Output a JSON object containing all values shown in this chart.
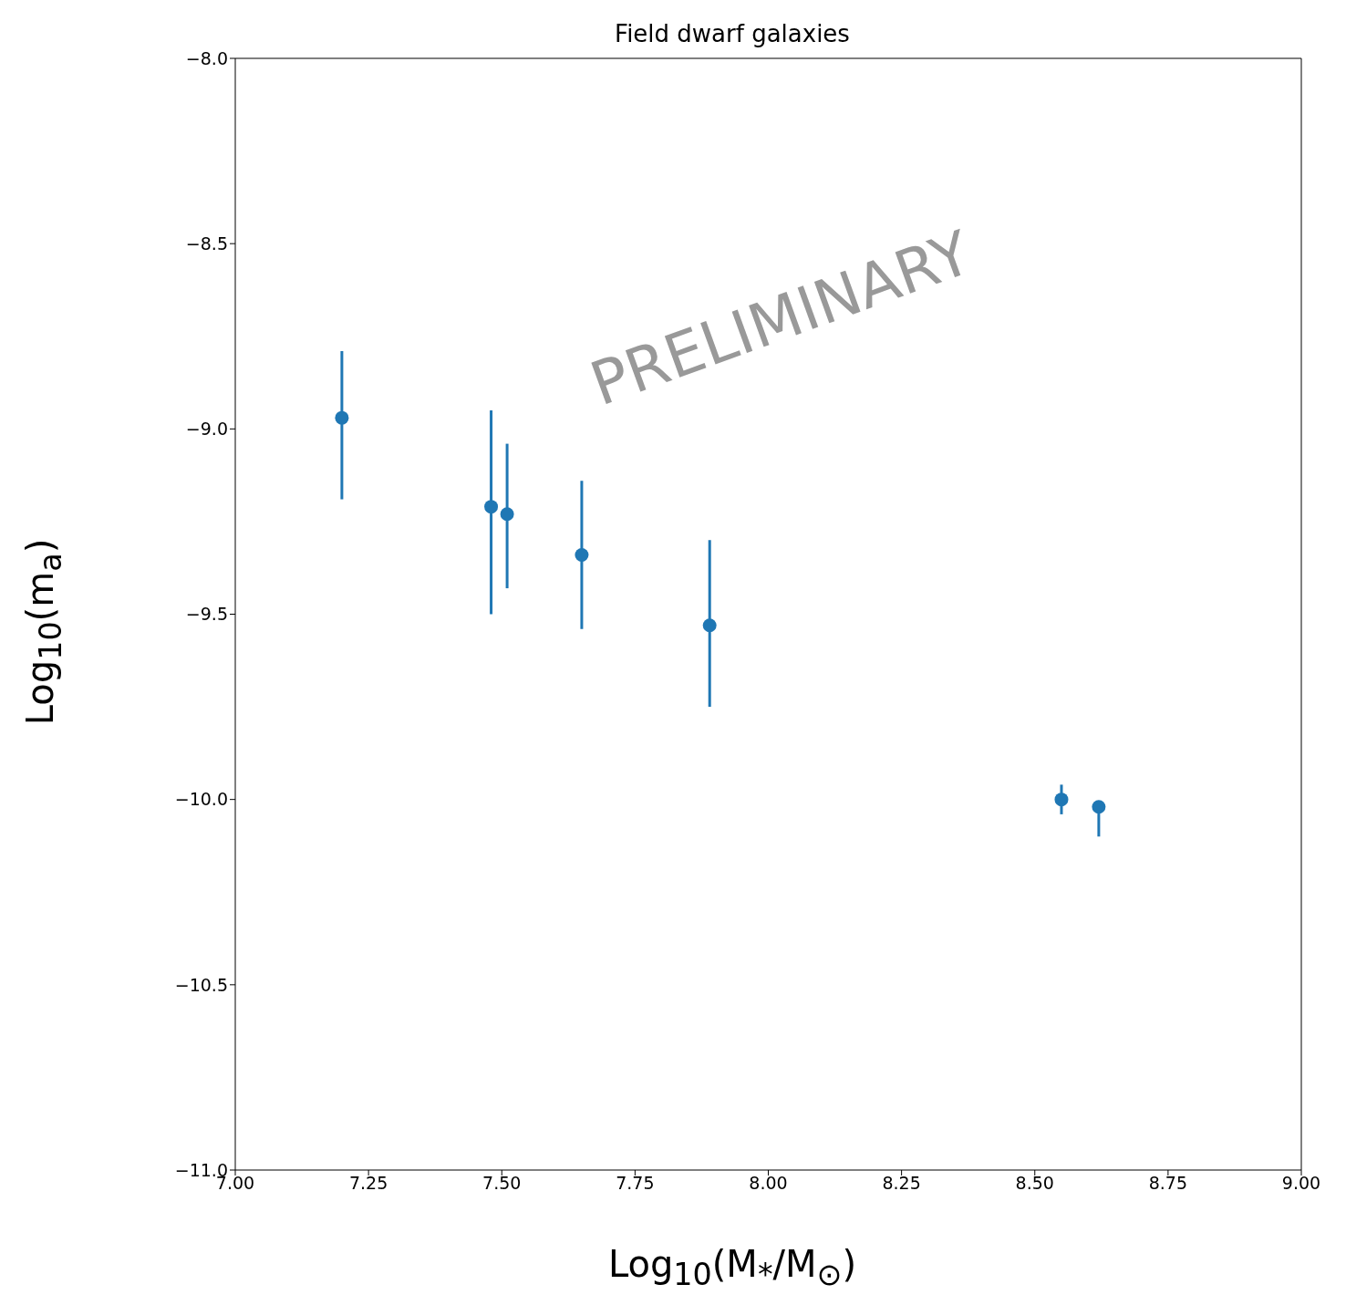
{
  "chart_data": {
    "type": "scatter",
    "title": "Field dwarf galaxies",
    "xlabel": "Log$_{10}$(M$_{*}$/M$_{⊙}$)",
    "ylabel": "Log$_{10}$(m$_{a}$)",
    "annotations": [
      "PRELIMINARY"
    ],
    "x": [
      7.2,
      7.48,
      7.51,
      7.65,
      7.89,
      8.55,
      8.62
    ],
    "series": [
      {
        "color": "#1f77b4",
        "values": [
          -8.97,
          -9.21,
          -9.23,
          -9.34,
          -9.53,
          -10.0,
          -10.02
        ],
        "errors": [
          [
            -9.19,
            -8.79
          ],
          [
            -9.5,
            -8.95
          ],
          [
            -9.43,
            -9.04
          ],
          [
            -9.54,
            -9.14
          ],
          [
            -9.75,
            -9.3
          ],
          [
            -10.04,
            -9.96
          ],
          [
            -10.1,
            -10.02
          ]
        ]
      }
    ],
    "xlim": [
      7.0,
      9.0
    ],
    "xticks": [
      {
        "value": 7.0,
        "label": "7.00"
      },
      {
        "value": 7.25,
        "label": "7.25"
      },
      {
        "value": 7.5,
        "label": "7.50"
      },
      {
        "value": 7.75,
        "label": "7.75"
      },
      {
        "value": 8.0,
        "label": "8.00"
      },
      {
        "value": 8.25,
        "label": "8.25"
      },
      {
        "value": 8.5,
        "label": "8.50"
      },
      {
        "value": 8.75,
        "label": "8.75"
      },
      {
        "value": 9.0,
        "label": "9.00"
      }
    ],
    "ylim": [
      -11.0,
      -8.0
    ],
    "yticks": [
      {
        "value": -11.0,
        "label": "−11.0"
      },
      {
        "value": -10.5,
        "label": "−10.5"
      },
      {
        "value": -10.0,
        "label": "−10.0"
      },
      {
        "value": -9.5,
        "label": "−9.5"
      },
      {
        "value": -9.0,
        "label": "−9.0"
      },
      {
        "value": -8.5,
        "label": "−8.5"
      },
      {
        "value": -8.0,
        "label": "−8.0"
      }
    ],
    "grid": false,
    "legend": false,
    "marker": "circle"
  }
}
